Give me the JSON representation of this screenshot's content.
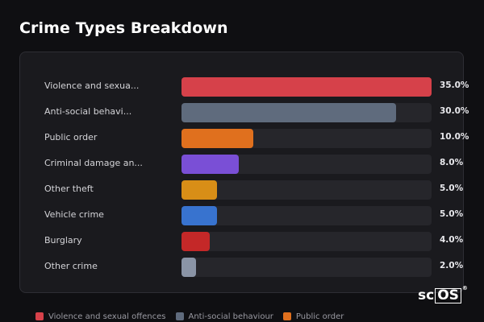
{
  "title": "Crime Types Breakdown",
  "chart_data": {
    "type": "bar",
    "orientation": "horizontal",
    "title": "Crime Types Breakdown",
    "categories": [
      "Violence and sexua...",
      "Anti-social behavi...",
      "Public order",
      "Criminal damage an...",
      "Other theft",
      "Vehicle crime",
      "Burglary",
      "Other crime"
    ],
    "values": [
      35.0,
      30.0,
      10.0,
      8.0,
      5.0,
      5.0,
      4.0,
      2.0
    ],
    "value_labels": [
      "35.0%",
      "30.0%",
      "10.0%",
      "8.0%",
      "5.0%",
      "5.0%",
      "4.0%",
      "2.0%"
    ],
    "colors": [
      "#d6414a",
      "#5f6b7d",
      "#e0701e",
      "#7a4fd6",
      "#d88e17",
      "#3873cf",
      "#c42828",
      "#8a94a6"
    ],
    "xlim": [
      0,
      35
    ],
    "grid": false,
    "legend_position": "bottom",
    "legend": [
      {
        "label": "Violence and sexual offences",
        "color": "#d6414a"
      },
      {
        "label": "Anti-social behaviour",
        "color": "#5f6b7d"
      },
      {
        "label": "Public order",
        "color": "#e0701e"
      }
    ]
  },
  "logo": {
    "text_sc": "sc",
    "text_os": "OS",
    "reg": "®"
  }
}
